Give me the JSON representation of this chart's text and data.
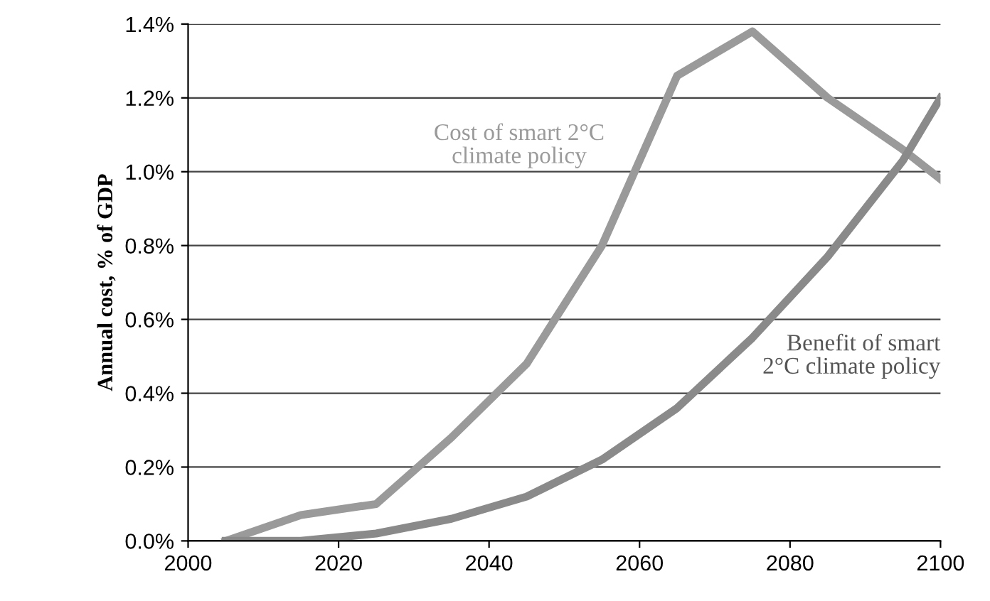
{
  "chart_data": {
    "type": "line",
    "ylabel": "Annual cost, % of GDP",
    "xlim": [
      2000,
      2100
    ],
    "xticks": [
      2000,
      2020,
      2040,
      2060,
      2080,
      2100
    ],
    "ylim": [
      0,
      1.4
    ],
    "yticks": [
      {
        "value": 0,
        "label": "0.0%"
      },
      {
        "value": 0.2,
        "label": "0.2%"
      },
      {
        "value": 0.4,
        "label": "0.4%"
      },
      {
        "value": 0.6,
        "label": "0.6%"
      },
      {
        "value": 0.8,
        "label": "0.8%"
      },
      {
        "value": 1.0,
        "label": "1.0%"
      },
      {
        "value": 1.2,
        "label": "1.2%"
      },
      {
        "value": 1.4,
        "label": "1.4%"
      }
    ],
    "grid": "y",
    "legend": false,
    "series": [
      {
        "name": "Cost of smart 2°C climate policy",
        "color": "#9a9a9a",
        "x": [
          2005,
          2015,
          2025,
          2035,
          2045,
          2055,
          2065,
          2075,
          2085,
          2095,
          2100
        ],
        "values": [
          0,
          0.07,
          0.1,
          0.28,
          0.48,
          0.8,
          1.26,
          1.38,
          1.2,
          1.06,
          0.98
        ]
      },
      {
        "name": "Benefit of smart 2°C climate policy",
        "color": "#8a8a8a",
        "x": [
          2005,
          2015,
          2025,
          2035,
          2045,
          2055,
          2065,
          2075,
          2085,
          2095,
          2100
        ],
        "values": [
          0,
          0,
          0.02,
          0.06,
          0.12,
          0.22,
          0.36,
          0.55,
          0.77,
          1.03,
          1.2
        ]
      }
    ]
  }
}
